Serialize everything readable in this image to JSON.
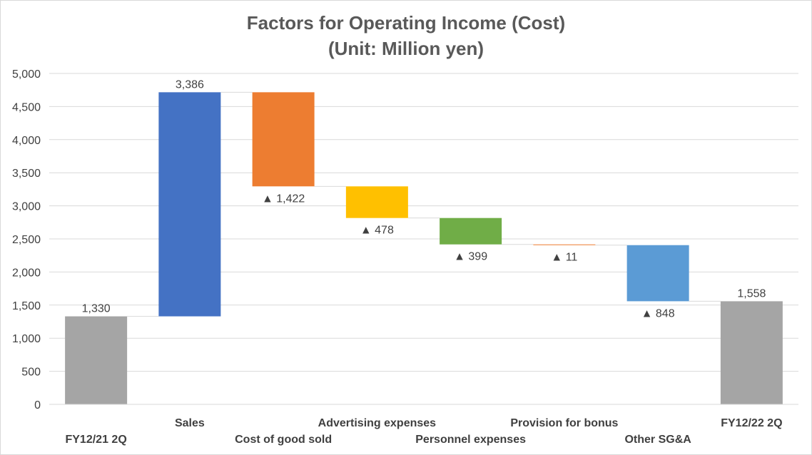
{
  "chart_data": {
    "type": "bar",
    "subtype": "waterfall",
    "title": "Factors for Operating Income (Cost)",
    "subtitle": "(Unit: Million yen)",
    "xlabel": "",
    "ylabel": "",
    "ylim": [
      0,
      5000
    ],
    "yticks": [
      0,
      500,
      1000,
      1500,
      2000,
      2500,
      3000,
      3500,
      4000,
      4500,
      5000
    ],
    "ytick_labels": [
      "0",
      "500",
      "1,000",
      "1,500",
      "2,000",
      "2,500",
      "3,000",
      "3,500",
      "4,000",
      "4,500",
      "5,000"
    ],
    "grid": true,
    "legend": "none",
    "categories": [
      "FY12/21 2Q",
      "Sales",
      "Cost of good sold",
      "Advertising expenses",
      "Personnel expenses",
      "Provision for bonus",
      "Other SG&A",
      "FY12/22 2Q"
    ],
    "bars": [
      {
        "category": "FY12/21 2Q",
        "kind": "total",
        "start": 0,
        "end": 1330,
        "label": "1,330",
        "color": "#a5a5a5"
      },
      {
        "category": "Sales",
        "kind": "increase",
        "start": 1330,
        "end": 4716,
        "label": "3,386",
        "color": "#4472c4"
      },
      {
        "category": "Cost of good sold",
        "kind": "decrease",
        "start": 4716,
        "end": 3294,
        "label": "▲ 1,422",
        "color": "#ed7d31"
      },
      {
        "category": "Advertising expenses",
        "kind": "decrease",
        "start": 3294,
        "end": 2816,
        "label": "▲ 478",
        "color": "#ffc000"
      },
      {
        "category": "Personnel expenses",
        "kind": "decrease",
        "start": 2816,
        "end": 2417,
        "label": "▲ 399",
        "color": "#70ad47"
      },
      {
        "category": "Provision for bonus",
        "kind": "decrease",
        "start": 2417,
        "end": 2406,
        "label": "▲ 11",
        "color": "#ed7d31"
      },
      {
        "category": "Other SG&A",
        "kind": "decrease",
        "start": 2406,
        "end": 1558,
        "label": "▲ 848",
        "color": "#5b9bd5"
      },
      {
        "category": "FY12/22 2Q",
        "kind": "total",
        "start": 0,
        "end": 1558,
        "label": "1,558",
        "color": "#a5a5a5"
      }
    ]
  }
}
